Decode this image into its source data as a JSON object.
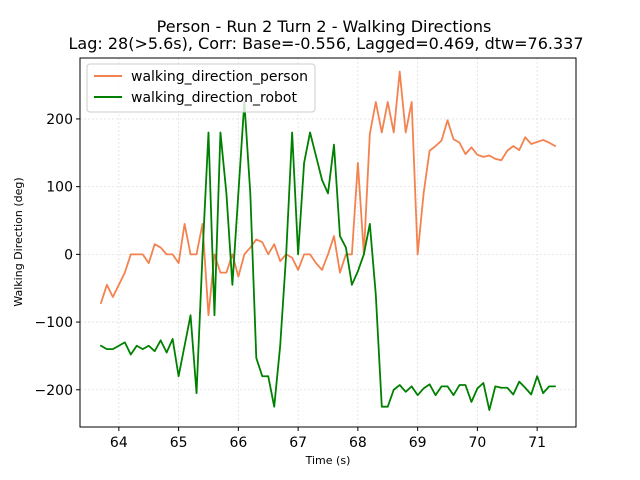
{
  "chart_data": {
    "type": "line",
    "title": "Person - Run 2 Turn 2 - Walking Directions",
    "subtitle": "Lag: 28(>5.6s), Corr: Base=-0.556, Lagged=0.469, dtw=76.337",
    "xlabel": "Time (s)",
    "ylabel": "Walking Direction (deg)",
    "xlim": [
      63.35,
      71.65
    ],
    "ylim": [
      -255,
      290
    ],
    "xticks": [
      64,
      65,
      66,
      67,
      68,
      69,
      70,
      71
    ],
    "yticks": [
      -200,
      -100,
      0,
      100,
      200
    ],
    "xtick_labels": [
      "64",
      "65",
      "66",
      "67",
      "68",
      "69",
      "70",
      "71"
    ],
    "ytick_labels": [
      "−200",
      "−100",
      "0",
      "100",
      "200"
    ],
    "grid": true,
    "legend_position": "upper-left",
    "series": [
      {
        "name": "walking_direction_person",
        "color": "#f4824f",
        "x": [
          63.7,
          63.8,
          63.9,
          64.0,
          64.1,
          64.2,
          64.3,
          64.4,
          64.5,
          64.6,
          64.7,
          64.8,
          64.9,
          65.0,
          65.1,
          65.2,
          65.3,
          65.4,
          65.5,
          65.6,
          65.7,
          65.8,
          65.9,
          66.0,
          66.1,
          66.2,
          66.3,
          66.4,
          66.5,
          66.6,
          66.7,
          66.8,
          66.9,
          67.0,
          67.1,
          67.2,
          67.3,
          67.4,
          67.5,
          67.6,
          67.7,
          67.8,
          67.9,
          68.0,
          68.1,
          68.2,
          68.3,
          68.4,
          68.5,
          68.6,
          68.7,
          68.8,
          68.9,
          69.0,
          69.1,
          69.2,
          69.3,
          69.4,
          69.5,
          69.6,
          69.7,
          69.8,
          69.9,
          70.0,
          70.1,
          70.2,
          70.3,
          70.4,
          70.5,
          70.6,
          70.7,
          70.8,
          70.9,
          71.0,
          71.1,
          71.2,
          71.3
        ],
        "values": [
          -72,
          -45,
          -63,
          -45,
          -27,
          0,
          0,
          0,
          -13,
          15,
          10,
          0,
          0,
          -13,
          45,
          0,
          0,
          45,
          -90,
          0,
          -27,
          -27,
          0,
          -33,
          0,
          10,
          22,
          18,
          0,
          15,
          -10,
          0,
          -5,
          -23,
          0,
          0,
          -13,
          -23,
          0,
          27,
          -27,
          0,
          0,
          135,
          0,
          178,
          225,
          180,
          225,
          180,
          270,
          180,
          225,
          0,
          90,
          153,
          160,
          168,
          198,
          170,
          165,
          148,
          158,
          147,
          144,
          146,
          141,
          139,
          153,
          160,
          154,
          173,
          163,
          166,
          169,
          165,
          160
        ]
      },
      {
        "name": "walking_direction_robot",
        "color": "#008000",
        "x": [
          63.7,
          63.8,
          63.9,
          64.0,
          64.1,
          64.2,
          64.3,
          64.4,
          64.5,
          64.6,
          64.7,
          64.8,
          64.9,
          65.0,
          65.1,
          65.2,
          65.3,
          65.4,
          65.5,
          65.6,
          65.7,
          65.8,
          65.9,
          66.0,
          66.1,
          66.2,
          66.3,
          66.4,
          66.5,
          66.6,
          66.7,
          66.8,
          66.9,
          67.0,
          67.1,
          67.2,
          67.3,
          67.4,
          67.5,
          67.6,
          67.7,
          67.8,
          67.9,
          68.0,
          68.1,
          68.2,
          68.3,
          68.4,
          68.5,
          68.6,
          68.7,
          68.8,
          68.9,
          69.0,
          69.1,
          69.2,
          69.3,
          69.4,
          69.5,
          69.6,
          69.7,
          69.8,
          69.9,
          70.0,
          70.1,
          70.2,
          70.3,
          70.4,
          70.5,
          70.6,
          70.7,
          70.8,
          70.9,
          71.0,
          71.1,
          71.2,
          71.3
        ],
        "values": [
          -135,
          -140,
          -140,
          -135,
          -130,
          -148,
          -135,
          -140,
          -135,
          -143,
          -127,
          -145,
          -125,
          -180,
          -135,
          -90,
          -205,
          0,
          180,
          -90,
          180,
          90,
          -45,
          90,
          225,
          90,
          -153,
          -180,
          -180,
          -225,
          -135,
          0,
          180,
          0,
          135,
          180,
          145,
          110,
          90,
          162,
          27,
          10,
          -45,
          -25,
          0,
          45,
          -60,
          -225,
          -225,
          -200,
          -193,
          -203,
          -195,
          -208,
          -198,
          -192,
          -208,
          -195,
          -195,
          -208,
          -193,
          -193,
          -218,
          -198,
          -190,
          -230,
          -195,
          -197,
          -197,
          -207,
          -188,
          -197,
          -207,
          -180,
          -205,
          -195,
          -195
        ]
      }
    ]
  }
}
